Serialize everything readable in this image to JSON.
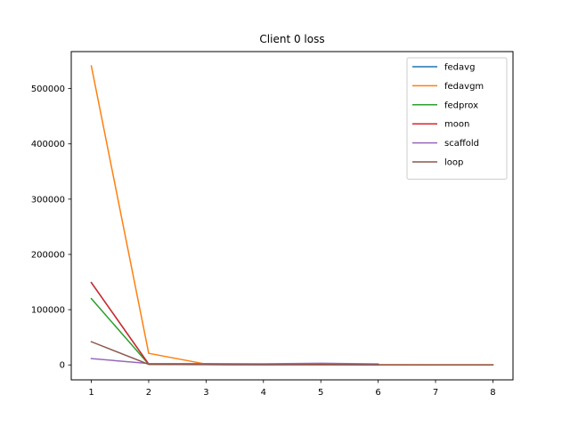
{
  "chart_data": {
    "type": "line",
    "title": "Client 0 loss",
    "xlabel": "",
    "ylabel": "",
    "x": [
      1,
      2,
      3,
      4,
      5,
      6,
      7,
      8
    ],
    "xlim": [
      0.65,
      8.35
    ],
    "ylim": [
      -27000,
      567000
    ],
    "xticks": [
      1,
      2,
      3,
      4,
      5,
      6,
      7,
      8
    ],
    "yticks": [
      0,
      100000,
      200000,
      300000,
      400000,
      500000
    ],
    "ytick_labels": [
      "0",
      "100000",
      "200000",
      "300000",
      "400000",
      "500000"
    ],
    "grid": false,
    "legend_position": "top-right",
    "series": [
      {
        "name": "fedavg",
        "color": "#1f77b4",
        "x": [
          1,
          2,
          3,
          4,
          5,
          6
        ],
        "values": [
          149000,
          1500,
          800,
          600,
          900,
          400
        ]
      },
      {
        "name": "fedavgm",
        "color": "#ff7f0e",
        "x": [
          1,
          2,
          3,
          4,
          5,
          6,
          7,
          8
        ],
        "values": [
          541000,
          21000,
          1500,
          500,
          400,
          300,
          200,
          100
        ]
      },
      {
        "name": "fedprox",
        "color": "#2ca02c",
        "x": [
          1,
          2,
          3,
          4,
          5,
          6
        ],
        "values": [
          120000,
          1200,
          700,
          500,
          800,
          300
        ]
      },
      {
        "name": "moon",
        "color": "#d62728",
        "x": [
          1,
          2,
          3,
          4,
          5,
          6
        ],
        "values": [
          149000,
          1500,
          900,
          700,
          1000,
          500
        ]
      },
      {
        "name": "scaffold",
        "color": "#9467bd",
        "x": [
          1,
          2,
          3,
          4,
          5,
          6
        ],
        "values": [
          11500,
          2500,
          2300,
          2000,
          3000,
          1800
        ]
      },
      {
        "name": "loop",
        "color": "#8c564b",
        "x": [
          1,
          2,
          3,
          4,
          5,
          6,
          7,
          8
        ],
        "values": [
          42000,
          1000,
          500,
          300,
          400,
          200,
          150,
          100
        ]
      }
    ]
  }
}
